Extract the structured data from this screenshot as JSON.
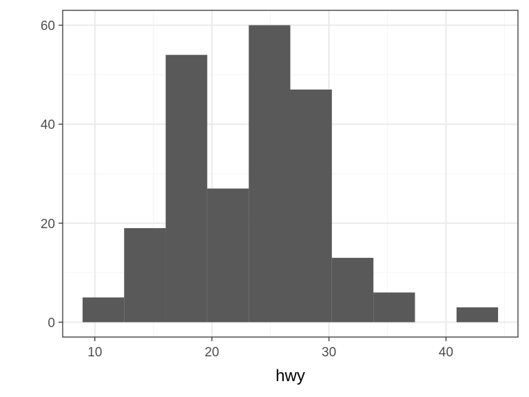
{
  "chart_data": {
    "type": "histogram",
    "xlabel": "hwy",
    "ylabel": "",
    "title": "",
    "xlim": [
      7.25,
      46.15
    ],
    "ylim": [
      -3,
      63
    ],
    "x_ticks": [
      10,
      20,
      30,
      40
    ],
    "y_ticks": [
      0,
      20,
      40,
      60
    ],
    "bins": [
      {
        "x0": 8.95,
        "x1": 12.5,
        "count": 5
      },
      {
        "x0": 12.5,
        "x1": 16.05,
        "count": 19
      },
      {
        "x0": 16.05,
        "x1": 19.6,
        "count": 54
      },
      {
        "x0": 19.6,
        "x1": 23.15,
        "count": 27
      },
      {
        "x0": 23.15,
        "x1": 26.7,
        "count": 60
      },
      {
        "x0": 26.7,
        "x1": 30.25,
        "count": 47
      },
      {
        "x0": 30.25,
        "x1": 33.8,
        "count": 13
      },
      {
        "x0": 33.8,
        "x1": 37.35,
        "count": 6
      },
      {
        "x0": 37.35,
        "x1": 40.9,
        "count": 0
      },
      {
        "x0": 40.9,
        "x1": 44.45,
        "count": 3
      }
    ],
    "grid": true,
    "colors": {
      "bar": "#595959",
      "grid_major": "#ebebeb",
      "grid_minor": "#f5f5f5",
      "panel_border": "#333333"
    }
  }
}
